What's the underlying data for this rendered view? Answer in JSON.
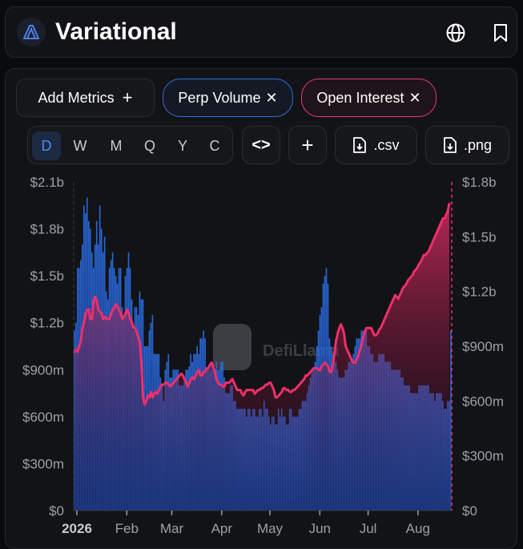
{
  "header": {
    "title": "Variational"
  },
  "controls": {
    "add_metrics": "Add Metrics",
    "add_plus": "+",
    "pill_perp": "Perp Volume",
    "pill_oi": "Open Interest",
    "close_glyph": "✕",
    "periods": [
      "D",
      "W",
      "M",
      "Q",
      "Y",
      "C"
    ],
    "active_period": "D",
    "embed_glyph": "<>",
    "plus_glyph": "+",
    "csv_label": ".csv",
    "png_label": ".png"
  },
  "watermark": "DefiLlama",
  "colors": {
    "perp_volume": "#2a6ee6",
    "open_interest": "#ef2f6b",
    "accent_active": "#4d8af0"
  },
  "chart_data": {
    "type": "bar+line",
    "left_axis": {
      "ticks": [
        "$0",
        "$300m",
        "$600m",
        "$900m",
        "$1.2b",
        "$1.5b",
        "$1.8b",
        "$2.1b"
      ],
      "ylim": [
        0,
        2100
      ]
    },
    "right_axis": {
      "ticks": [
        "$0",
        "$300m",
        "$600m",
        "$900m",
        "$1.2b",
        "$1.5b",
        "$1.8b"
      ],
      "ylim": [
        0,
        1800
      ]
    },
    "x_ticks": [
      "2026",
      "Feb",
      "Mar",
      "Apr",
      "May",
      "Jun",
      "Jul",
      "Aug"
    ],
    "x_tick_days": [
      1,
      32,
      60,
      91,
      121,
      152,
      182,
      213
    ],
    "x_range_days": [
      -1,
      234
    ],
    "units": "USD millions",
    "series": [
      {
        "type": "bar",
        "axis": "left",
        "values": [
          1150,
          1200,
          1550,
          1550,
          1600,
          1700,
          1950,
          1900,
          2000,
          1850,
          1800,
          1650,
          1550,
          1700,
          1850,
          1700,
          1950,
          1800,
          1650,
          1750,
          1400,
          1350,
          1550,
          1600,
          1650,
          1550,
          1500,
          1450,
          1550,
          1550,
          1300,
          1250,
          1500,
          1550,
          1650,
          1550,
          1350,
          1150,
          1300,
          1300,
          1250,
          1400,
          1350,
          1350,
          1050,
          1050,
          1050,
          1150,
          1200,
          1250,
          1000,
          1000,
          1000,
          1000,
          850,
          800,
          700,
          900,
          950,
          1000,
          850,
          850,
          900,
          900,
          900,
          900,
          800,
          800,
          800,
          850,
          900,
          900,
          920,
          1000,
          950,
          1000,
          1000,
          1050,
          1000,
          1100,
          1100,
          1150,
          1100,
          900,
          900,
          900,
          950,
          900,
          900,
          950,
          900,
          900,
          950,
          950,
          850,
          750,
          750,
          750,
          800,
          800,
          700,
          700,
          650,
          650,
          650,
          650,
          650,
          650,
          600,
          650,
          650,
          600,
          650,
          650,
          600,
          600,
          650,
          650,
          600,
          700,
          650,
          650,
          600,
          550,
          600,
          600,
          550,
          550,
          650,
          600,
          650,
          600,
          600,
          550,
          550,
          650,
          650,
          600,
          600,
          600,
          600,
          650,
          650,
          700,
          700,
          700,
          750,
          800,
          850,
          900,
          900,
          950,
          1050,
          1150,
          1250,
          1300,
          1450,
          1500,
          1550,
          1450,
          1100,
          1050,
          1000,
          950,
          950,
          900,
          850,
          850,
          850,
          850,
          900,
          900,
          950,
          950,
          950,
          1000,
          1050,
          1100,
          1100,
          1100,
          1150,
          1150,
          1150,
          1150,
          1050,
          1050,
          1000,
          1000,
          950,
          950,
          950,
          1000,
          1000,
          1000,
          1000,
          950,
          950,
          950,
          950,
          900,
          900,
          900,
          900,
          900,
          900,
          850,
          850,
          800,
          800,
          800,
          800,
          750,
          750,
          750,
          750,
          750,
          800,
          800,
          800,
          800,
          800,
          800,
          800,
          750,
          750,
          750,
          700,
          750,
          750,
          750,
          750,
          700,
          650,
          650,
          700,
          700,
          1150
        ]
      },
      {
        "type": "line",
        "axis": "right",
        "values": [
          870,
          880,
          870,
          900,
          930,
          1000,
          1030,
          1080,
          1100,
          1100,
          1050,
          1050,
          1150,
          1170,
          1150,
          1100,
          1090,
          1080,
          1050,
          1060,
          1050,
          1050,
          1050,
          1080,
          1100,
          1110,
          1130,
          1120,
          1100,
          1080,
          1050,
          1060,
          1080,
          1100,
          1080,
          1050,
          1030,
          1000,
          1000,
          980,
          950,
          920,
          800,
          620,
          580,
          600,
          630,
          620,
          650,
          620,
          640,
          650,
          640,
          660,
          680,
          690,
          690,
          700,
          700,
          690,
          680,
          690,
          700,
          710,
          720,
          730,
          740,
          750,
          740,
          720,
          700,
          680,
          700,
          720,
          730,
          720,
          740,
          760,
          770,
          740,
          740,
          760,
          760,
          780,
          780,
          800,
          810,
          790,
          760,
          720,
          700,
          690,
          690,
          680,
          680,
          700,
          700,
          700,
          710,
          720,
          700,
          680,
          660,
          660,
          660,
          640,
          630,
          650,
          660,
          660,
          660,
          660,
          660,
          640,
          650,
          660,
          660,
          670,
          670,
          680,
          690,
          690,
          700,
          700,
          680,
          660,
          620,
          620,
          630,
          640,
          650,
          670,
          670,
          660,
          660,
          650,
          650,
          660,
          660,
          670,
          680,
          690,
          700,
          710,
          720,
          740,
          740,
          750,
          760,
          770,
          780,
          780,
          780,
          770,
          770,
          790,
          800,
          810,
          800,
          790,
          760,
          760,
          800,
          860,
          930,
          970,
          1000,
          1020,
          1000,
          970,
          900,
          880,
          860,
          840,
          820,
          810,
          810,
          830,
          850,
          880,
          910,
          950,
          980,
          1000,
          1000,
          1000,
          1000,
          980,
          960,
          960,
          970,
          990,
          1000,
          1020,
          1040,
          1060,
          1080,
          1100,
          1120,
          1140,
          1160,
          1180,
          1170,
          1160,
          1180,
          1200,
          1220,
          1230,
          1240,
          1260,
          1270,
          1280,
          1290,
          1310,
          1320,
          1330,
          1350,
          1360,
          1380,
          1400,
          1400,
          1410,
          1420,
          1440,
          1460,
          1480,
          1500,
          1520,
          1540,
          1560,
          1580,
          1600,
          1600,
          1620,
          1640,
          1680
        ]
      }
    ]
  }
}
